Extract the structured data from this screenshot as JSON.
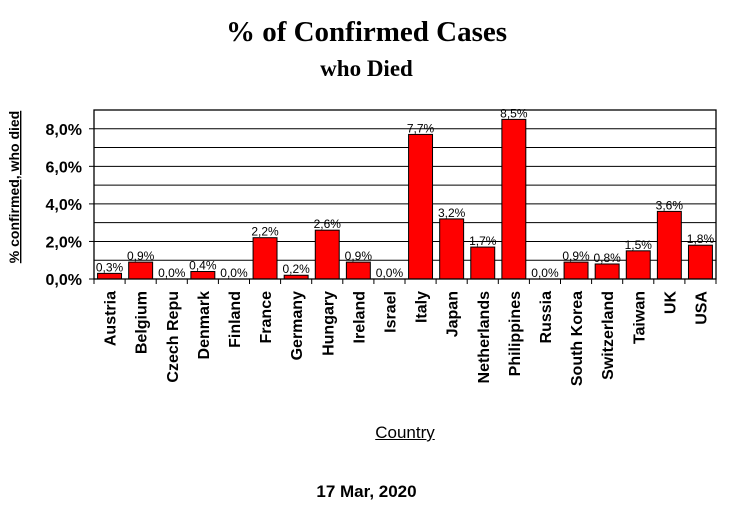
{
  "chart_data": {
    "type": "bar",
    "title": "% of Confirmed Cases",
    "subtitle": "who Died",
    "xlabel": "Country",
    "ylabel": "% confirmed, who died",
    "footer": "17 Mar, 2020",
    "categories": [
      "Austria",
      "Belgium",
      "Czech Repu",
      "Denmark",
      "Finland",
      "France",
      "Germany",
      "Hungary",
      "Ireland",
      "Israel",
      "Italy",
      "Japan",
      "Netherlands",
      "Philippines",
      "Russia",
      "South Korea",
      "Switzerland",
      "Taiwan",
      "UK",
      "USA"
    ],
    "values": [
      0.3,
      0.9,
      0.0,
      0.4,
      0.0,
      2.2,
      0.2,
      2.6,
      0.9,
      0.0,
      7.7,
      3.2,
      1.7,
      8.5,
      0.0,
      0.9,
      0.8,
      1.5,
      3.6,
      1.8
    ],
    "value_labels": [
      "0,3%",
      "0,9%",
      "0,0%",
      "0,4%",
      "0,0%",
      "2,2%",
      "0,2%",
      "2,6%",
      "0,9%",
      "0,0%",
      "7,7%",
      "3,2%",
      "1,7%",
      "8,5%",
      "0,0%",
      "0,9%",
      "0,8%",
      "1,5%",
      "3,6%",
      "1,8%"
    ],
    "y_ticks": [
      0,
      2,
      4,
      6,
      8
    ],
    "y_tick_labels": [
      "0,0%",
      "2,0%",
      "4,0%",
      "6,0%",
      "8,0%"
    ],
    "ylim": [
      0,
      9
    ],
    "grid": true,
    "colors": {
      "bar": "#ff0000",
      "bar_edge": "#000000",
      "grid": "#000000"
    }
  }
}
